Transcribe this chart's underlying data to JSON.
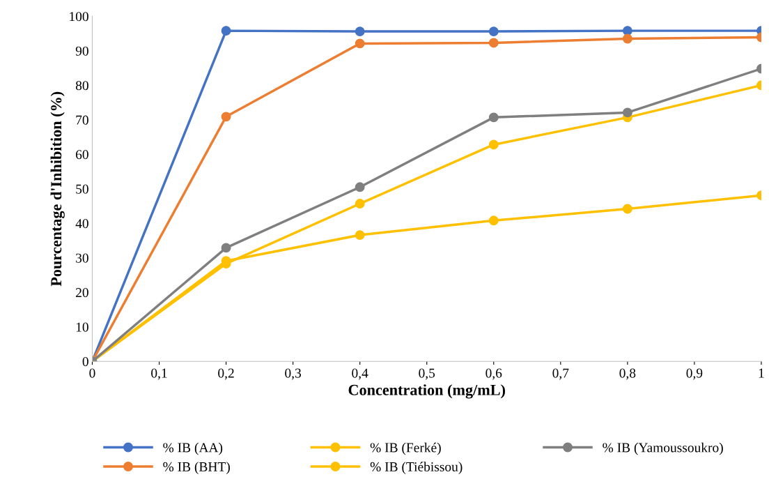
{
  "chart_data": {
    "type": "line",
    "xlabel": "Concentration (mg/mL)",
    "ylabel": "Pourcentage d'Inhibition (%)",
    "x": [
      0,
      0.2,
      0.4,
      0.6,
      0.8,
      1
    ],
    "series": [
      {
        "name": "% IB (AA)",
        "color": "#4472c4",
        "values": [
          0,
          95.8,
          95.6,
          95.6,
          95.8,
          95.8
        ]
      },
      {
        "name": "% IB (BHT)",
        "color": "#ed7d31",
        "values": [
          0,
          70.9,
          92.1,
          92.3,
          93.5,
          93.9
        ]
      },
      {
        "name": "% IB (Ferké)",
        "color": "#ffc000",
        "values": [
          0,
          29.1,
          36.6,
          40.8,
          44.2,
          48.1
        ]
      },
      {
        "name": "% IB (Tiébissou)",
        "color": "#ffc000",
        "values": [
          0,
          28.3,
          45.7,
          62.8,
          70.7,
          80.0
        ]
      },
      {
        "name": "% IB (Yamoussoukro)",
        "color": "#7f7f7f",
        "values": [
          0,
          32.9,
          50.5,
          70.7,
          72.1,
          84.8
        ]
      }
    ],
    "xlim": [
      0,
      1
    ],
    "xticks": [
      0,
      {
        "value": 0.1,
        "label": "0,1"
      },
      {
        "value": 0.2,
        "label": "0,2"
      },
      {
        "value": 0.3,
        "label": "0,3"
      },
      {
        "value": 0.4,
        "label": "0,4"
      },
      {
        "value": 0.5,
        "label": "0,5"
      },
      {
        "value": 0.6,
        "label": "0,6"
      },
      {
        "value": 0.7,
        "label": "0,7"
      },
      {
        "value": 0.8,
        "label": "0,8"
      },
      {
        "value": 0.9,
        "label": "0,9"
      },
      1
    ],
    "ylim": [
      0,
      100
    ],
    "yticks": [
      0,
      10,
      20,
      30,
      40,
      50,
      60,
      70,
      80,
      90,
      100
    ],
    "legend": "bottom",
    "marker": "circle",
    "line_style": "solid",
    "grid": false
  }
}
